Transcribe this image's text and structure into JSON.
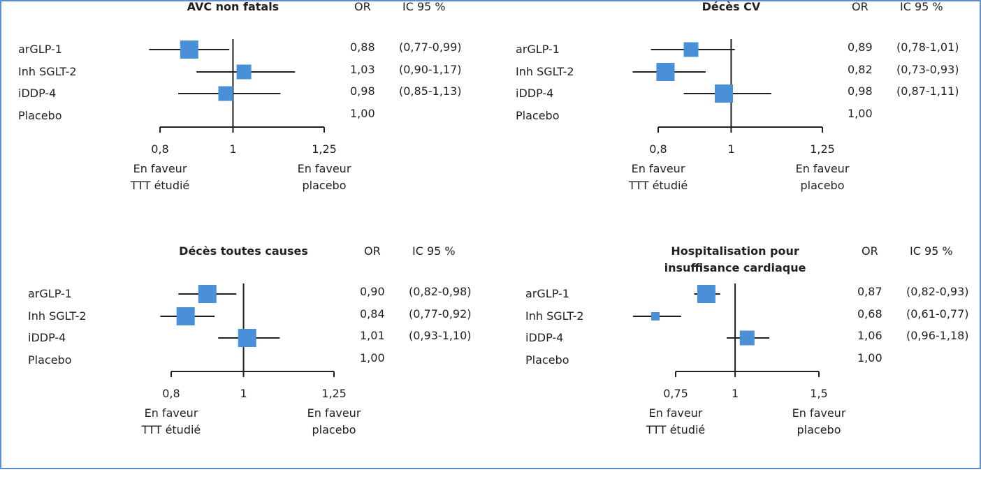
{
  "chart_data": [
    {
      "type": "forest",
      "title": "AVC non fatals",
      "header_or": "OR",
      "header_ci": "IC 95 %",
      "rows": [
        {
          "label": "arGLP-1",
          "or": 0.88,
          "ci_low": 0.77,
          "ci_high": 0.99,
          "or_text": "0,88",
          "ci_text": "(0,77-0,99)",
          "marker": "large"
        },
        {
          "label": "Inh SGLT-2",
          "or": 1.03,
          "ci_low": 0.9,
          "ci_high": 1.17,
          "or_text": "1,03",
          "ci_text": "(0,90-1,17)",
          "marker": "medium"
        },
        {
          "label": "iDDP-4",
          "or": 0.98,
          "ci_low": 0.85,
          "ci_high": 1.13,
          "or_text": "0,98",
          "ci_text": "(0,85-1,13)",
          "marker": "medium"
        },
        {
          "label": "Placebo",
          "or_text": "1,00"
        }
      ],
      "ticks": [
        {
          "value": 0.8,
          "label": "0,8"
        },
        {
          "value": 1,
          "label": "1"
        },
        {
          "value": 1.25,
          "label": "1,25"
        }
      ],
      "xlim": [
        0.8,
        1.25
      ],
      "favour_left": [
        "En faveur",
        "TTT étudié"
      ],
      "favour_right": [
        "En faveur",
        "placebo"
      ]
    },
    {
      "type": "forest",
      "title": "Décès CV",
      "header_or": "OR",
      "header_ci": "IC 95 %",
      "rows": [
        {
          "label": "arGLP-1",
          "or": 0.89,
          "ci_low": 0.78,
          "ci_high": 1.01,
          "or_text": "0,89",
          "ci_text": "(0,78-1,01)",
          "marker": "medium"
        },
        {
          "label": "Inh SGLT-2",
          "or": 0.82,
          "ci_low": 0.73,
          "ci_high": 0.93,
          "or_text": "0,82",
          "ci_text": "(0,73-0,93)",
          "marker": "large"
        },
        {
          "label": "iDDP-4",
          "or": 0.98,
          "ci_low": 0.87,
          "ci_high": 1.11,
          "or_text": "0,98",
          "ci_text": "(0,87-1,11)",
          "marker": "large"
        },
        {
          "label": "Placebo",
          "or_text": "1,00"
        }
      ],
      "ticks": [
        {
          "value": 0.8,
          "label": "0,8"
        },
        {
          "value": 1,
          "label": "1"
        },
        {
          "value": 1.25,
          "label": "1,25"
        }
      ],
      "xlim": [
        0.8,
        1.25
      ],
      "favour_left": [
        "En faveur",
        "TTT étudié"
      ],
      "favour_right": [
        "En faveur",
        "placebo"
      ]
    },
    {
      "type": "forest",
      "title": "Décès toutes causes",
      "header_or": "OR",
      "header_ci": "IC 95 %",
      "rows": [
        {
          "label": "arGLP-1",
          "or": 0.9,
          "ci_low": 0.82,
          "ci_high": 0.98,
          "or_text": "0,90",
          "ci_text": "(0,82-0,98)",
          "marker": "large"
        },
        {
          "label": "Inh SGLT-2",
          "or": 0.84,
          "ci_low": 0.77,
          "ci_high": 0.92,
          "or_text": "0,84",
          "ci_text": "(0,77-0,92)",
          "marker": "large"
        },
        {
          "label": "iDDP-4",
          "or": 1.01,
          "ci_low": 0.93,
          "ci_high": 1.1,
          "or_text": "1,01",
          "ci_text": "(0,93-1,10)",
          "marker": "large"
        },
        {
          "label": "Placebo",
          "or_text": "1,00"
        }
      ],
      "ticks": [
        {
          "value": 0.8,
          "label": "0,8"
        },
        {
          "value": 1,
          "label": "1"
        },
        {
          "value": 1.25,
          "label": "1,25"
        }
      ],
      "xlim": [
        0.8,
        1.25
      ],
      "favour_left": [
        "En faveur",
        "TTT étudié"
      ],
      "favour_right": [
        "En faveur",
        "placebo"
      ]
    },
    {
      "type": "forest",
      "title": [
        "Hospitalisation pour",
        "insuffisance cardiaque"
      ],
      "header_or": "OR",
      "header_ci": "IC 95 %",
      "rows": [
        {
          "label": "arGLP-1",
          "or": 0.87,
          "ci_low": 0.82,
          "ci_high": 0.93,
          "or_text": "0,87",
          "ci_text": "(0,82-0,93)",
          "marker": "large"
        },
        {
          "label": "Inh SGLT-2",
          "or": 0.68,
          "ci_low": 0.61,
          "ci_high": 0.77,
          "or_text": "0,68",
          "ci_text": "(0,61-0,77)",
          "marker": "small"
        },
        {
          "label": "iDDP-4",
          "or": 1.06,
          "ci_low": 0.96,
          "ci_high": 1.18,
          "or_text": "1,06",
          "ci_text": "(0,96-1,18)",
          "marker": "medium"
        },
        {
          "label": "Placebo",
          "or_text": "1,00"
        }
      ],
      "ticks": [
        {
          "value": 0.75,
          "label": "0,75"
        },
        {
          "value": 1,
          "label": "1"
        },
        {
          "value": 1.5,
          "label": "1,5"
        }
      ],
      "xlim": [
        0.75,
        1.5
      ],
      "scale": "log",
      "favour_left": [
        "En faveur",
        "TTT étudié"
      ],
      "favour_right": [
        "En faveur",
        "placebo"
      ]
    }
  ],
  "colors": {
    "marker": "#4a90d9",
    "line": "#231f20",
    "frame": "#5b8fd0"
  }
}
